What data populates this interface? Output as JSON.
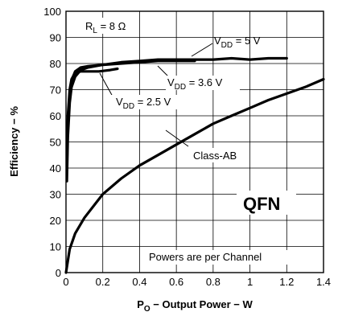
{
  "chart_data": {
    "type": "line",
    "title": "",
    "xlabel_main": "P",
    "xlabel_sub": "O",
    "xlabel_rest": " − Output Power − W",
    "ylabel": "Efficiency − %",
    "xlim": [
      0,
      1.4
    ],
    "ylim": [
      0,
      100
    ],
    "x_ticks": [
      "0",
      "0.2",
      "0.4",
      "0.6",
      "0.8",
      "1",
      "1.2",
      "1.4"
    ],
    "y_ticks": [
      "0",
      "10",
      "20",
      "30",
      "40",
      "50",
      "60",
      "70",
      "80",
      "90",
      "100"
    ],
    "x_tick_values": [
      0,
      0.2,
      0.4,
      0.6,
      0.8,
      1.0,
      1.2,
      1.4
    ],
    "y_tick_values": [
      0,
      10,
      20,
      30,
      40,
      50,
      60,
      70,
      80,
      90,
      100
    ],
    "grid": true,
    "series": [
      {
        "name": "VDD = 5 V",
        "x": [
          0.005,
          0.01,
          0.02,
          0.03,
          0.05,
          0.08,
          0.12,
          0.2,
          0.3,
          0.4,
          0.5,
          0.6,
          0.7,
          0.8,
          0.9,
          1.0,
          1.1,
          1.2
        ],
        "y": [
          35,
          52,
          65,
          71,
          75,
          77.5,
          78.5,
          79.5,
          80.5,
          81,
          81.5,
          81.5,
          81.5,
          81.5,
          82,
          81.5,
          82,
          82
        ]
      },
      {
        "name": "VDD = 3.6 V",
        "x": [
          0.005,
          0.01,
          0.02,
          0.03,
          0.05,
          0.08,
          0.12,
          0.2,
          0.3,
          0.4,
          0.5,
          0.6,
          0.7
        ],
        "y": [
          40,
          56,
          68,
          73.5,
          77,
          78.5,
          79,
          79.5,
          80,
          80.5,
          81,
          81,
          81
        ]
      },
      {
        "name": "VDD = 2.5 V",
        "x": [
          0.005,
          0.01,
          0.02,
          0.03,
          0.05,
          0.08,
          0.12,
          0.18,
          0.24,
          0.28
        ],
        "y": [
          44,
          60,
          70,
          74,
          76.5,
          77,
          77,
          77,
          77.5,
          78
        ]
      },
      {
        "name": "Class-AB",
        "x": [
          0,
          0.02,
          0.05,
          0.1,
          0.2,
          0.3,
          0.4,
          0.5,
          0.6,
          0.7,
          0.8,
          0.9,
          1.0,
          1.1,
          1.2,
          1.3,
          1.4
        ],
        "y": [
          0,
          9,
          15,
          21,
          30,
          36,
          41,
          45,
          49,
          53,
          57,
          60,
          63,
          66,
          68.5,
          71,
          74
        ]
      }
    ],
    "annotations": {
      "rl_main": "R",
      "rl_sub": "L",
      "rl_rest": " = 8 Ω",
      "vdd5_main": "V",
      "vdd5_sub": "DD",
      "vdd5_rest": " = 5 V",
      "vdd36_main": "V",
      "vdd36_sub": "DD",
      "vdd36_rest": " = 3.6 V",
      "vdd25_main": "V",
      "vdd25_sub": "DD",
      "vdd25_rest": " = 2.5 V",
      "classab": "Class-AB",
      "package": "QFN",
      "note": "Powers are per Channel"
    }
  }
}
